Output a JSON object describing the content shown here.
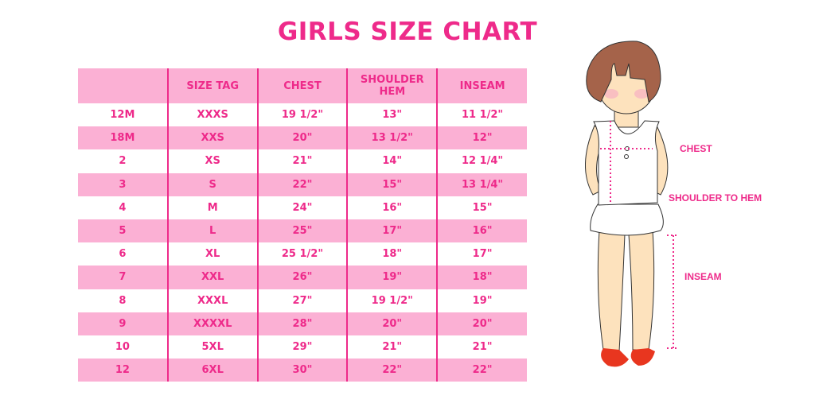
{
  "title": "GIRLS SIZE CHART",
  "table": {
    "headers": [
      "",
      "SIZE TAG",
      "CHEST",
      "SHOULDER HEM",
      "INSEAM"
    ],
    "rows": [
      [
        "12M",
        "XXXS",
        "19 1/2\"",
        "13\"",
        "11 1/2\""
      ],
      [
        "18M",
        "XXS",
        "20\"",
        "13 1/2\"",
        "12\""
      ],
      [
        "2",
        "XS",
        "21\"",
        "14\"",
        "12 1/4\""
      ],
      [
        "3",
        "S",
        "22\"",
        "15\"",
        "13 1/4\""
      ],
      [
        "4",
        "M",
        "24\"",
        "16\"",
        "15\""
      ],
      [
        "5",
        "L",
        "25\"",
        "17\"",
        "16\""
      ],
      [
        "6",
        "XL",
        "25 1/2\"",
        "18\"",
        "17\""
      ],
      [
        "7",
        "XXL",
        "26\"",
        "19\"",
        "18\""
      ],
      [
        "8",
        "XXXL",
        "27\"",
        "19 1/2\"",
        "19\""
      ],
      [
        "9",
        "XXXXL",
        "28\"",
        "20\"",
        "20\""
      ],
      [
        "10",
        "5XL",
        "29\"",
        "21\"",
        "21\""
      ],
      [
        "12",
        "6XL",
        "30\"",
        "22\"",
        "22\""
      ]
    ]
  },
  "figure": {
    "chest_label": "CHEST",
    "shoulder_label": "SHOULDER TO HEM",
    "inseam_label": "INSEAM"
  },
  "colors": {
    "accent": "#ee2a8a",
    "band": "#fbb0d4"
  }
}
